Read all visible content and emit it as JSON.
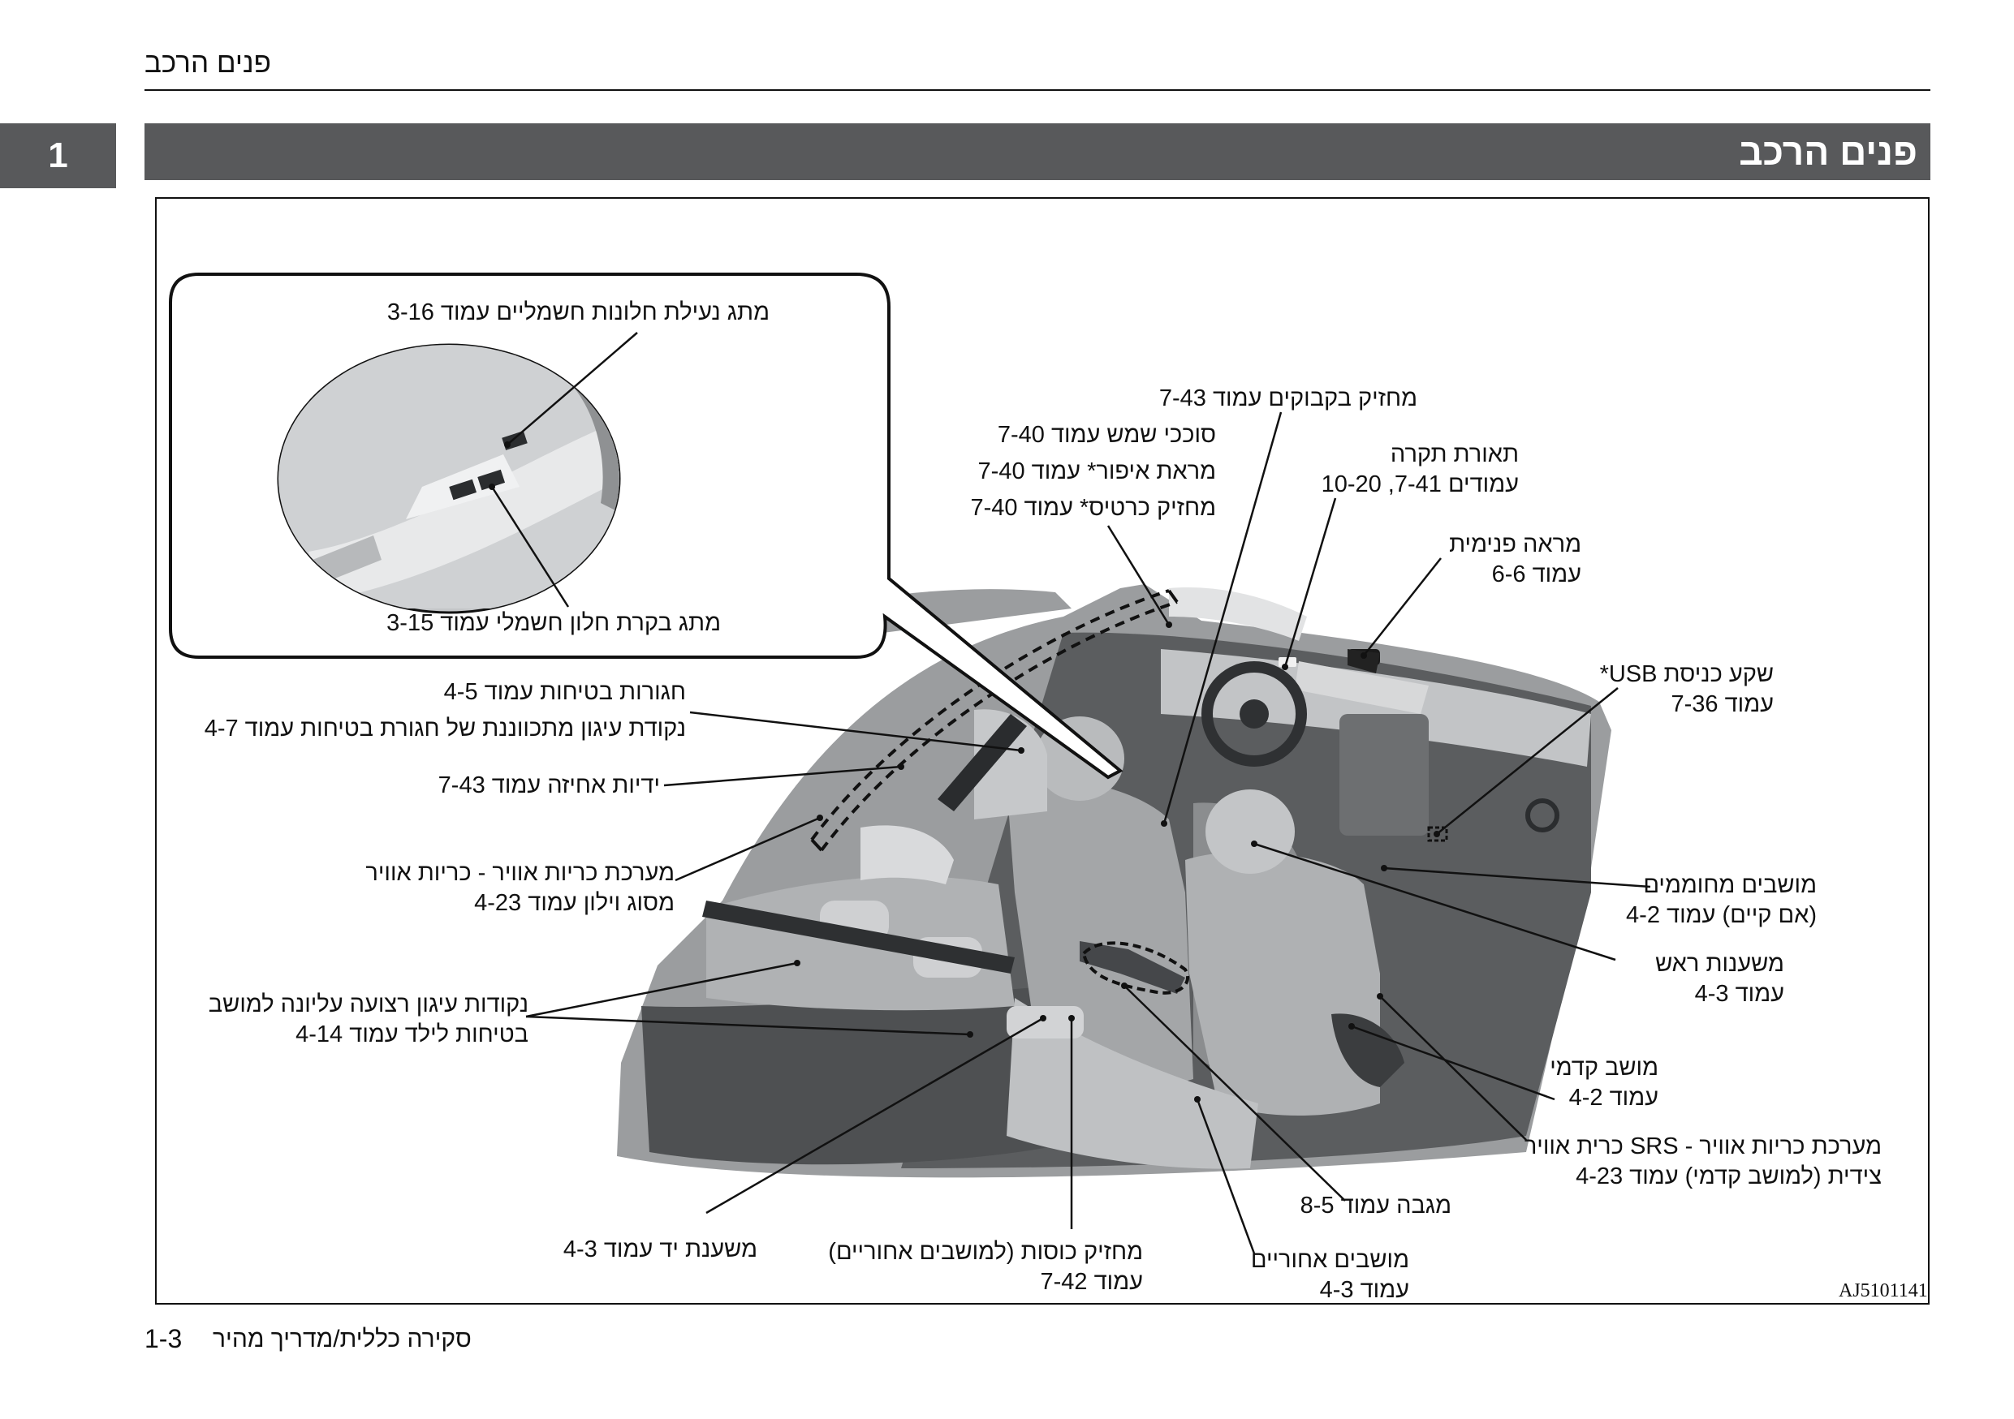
{
  "header": {
    "running_title": "פנים הרכב",
    "chapter_number": "1",
    "section_title": "פנים הרכב"
  },
  "inset": {
    "window_lock_switch": {
      "name": "מתג נעילת חלונות חשמליים",
      "ref": "עמוד 3-16"
    },
    "power_window_switch": {
      "name": "מתג בקרת חלון חשמלי",
      "ref": "עמוד 3-15"
    }
  },
  "callouts": {
    "bottle_holder": {
      "line1": "מחזיק בקבוקים עמוד 7-43"
    },
    "sun_visor": {
      "line1": "סוככי שמש עמוד 7-40"
    },
    "vanity_mirror": {
      "line1": "מראת איפור* עמוד 7-40"
    },
    "card_holder": {
      "line1": "מחזיק כרטיס* עמוד 7-40"
    },
    "interior_lamps": {
      "line1": "תאורת תקרה",
      "line2": "עמודים 7-41, 10-20"
    },
    "rearview_mirror": {
      "line1": "מראה פנימית",
      "line2": "עמוד 6-6"
    },
    "usb_port": {
      "line1": "שקע כניסת USB*",
      "line2": "עמוד 7-36"
    },
    "seat_belts": {
      "line1": "חגורות בטיחות עמוד 4-5"
    },
    "belt_anchor": {
      "line1": "נקודת עיגון מתכווננת של חגורת בטיחות עמוד 4-7"
    },
    "assist_grips": {
      "line1": "ידיות אחיזה עמוד 7-43"
    },
    "curtain_airbags": {
      "line1": "מערכת כריות אוויר - כריות אוויר",
      "line2": "מסוג וילון עמוד 4-23"
    },
    "tether_anchors": {
      "line1": "נקודות עיגון רצועה עליונה למושב",
      "line2": "בטיחות לילד עמוד 4-14"
    },
    "heated_seats": {
      "line1": "מושבים מחוממים",
      "line2": "(אם קיים) עמוד 4-2"
    },
    "head_restraints": {
      "line1": "משענות ראש",
      "line2": "עמוד 4-3"
    },
    "front_seat": {
      "line1": "מושב קדמי",
      "line2": "עמוד 4-2"
    },
    "side_airbags": {
      "line1": "מערכת כריות אוויר - SRS כרית אוויר",
      "line2": "צידית (למושב קדמי) עמוד 4-23"
    },
    "towel": {
      "line1": "מגבה עמוד 8-5"
    },
    "armrest": {
      "line1": "משענת יד עמוד 4-3"
    },
    "cup_holder": {
      "line1": "מחזיק כוסות (למושבים אחוריים)",
      "line2": "עמוד 7-42"
    },
    "rear_seats": {
      "line1": "מושבים אחוריים",
      "line2": "עמוד 4-3"
    }
  },
  "figure_code": "AJ5101141",
  "footer": {
    "page_number": "1-3",
    "book_title": "סקירה כללית/מדריך מהיר"
  }
}
